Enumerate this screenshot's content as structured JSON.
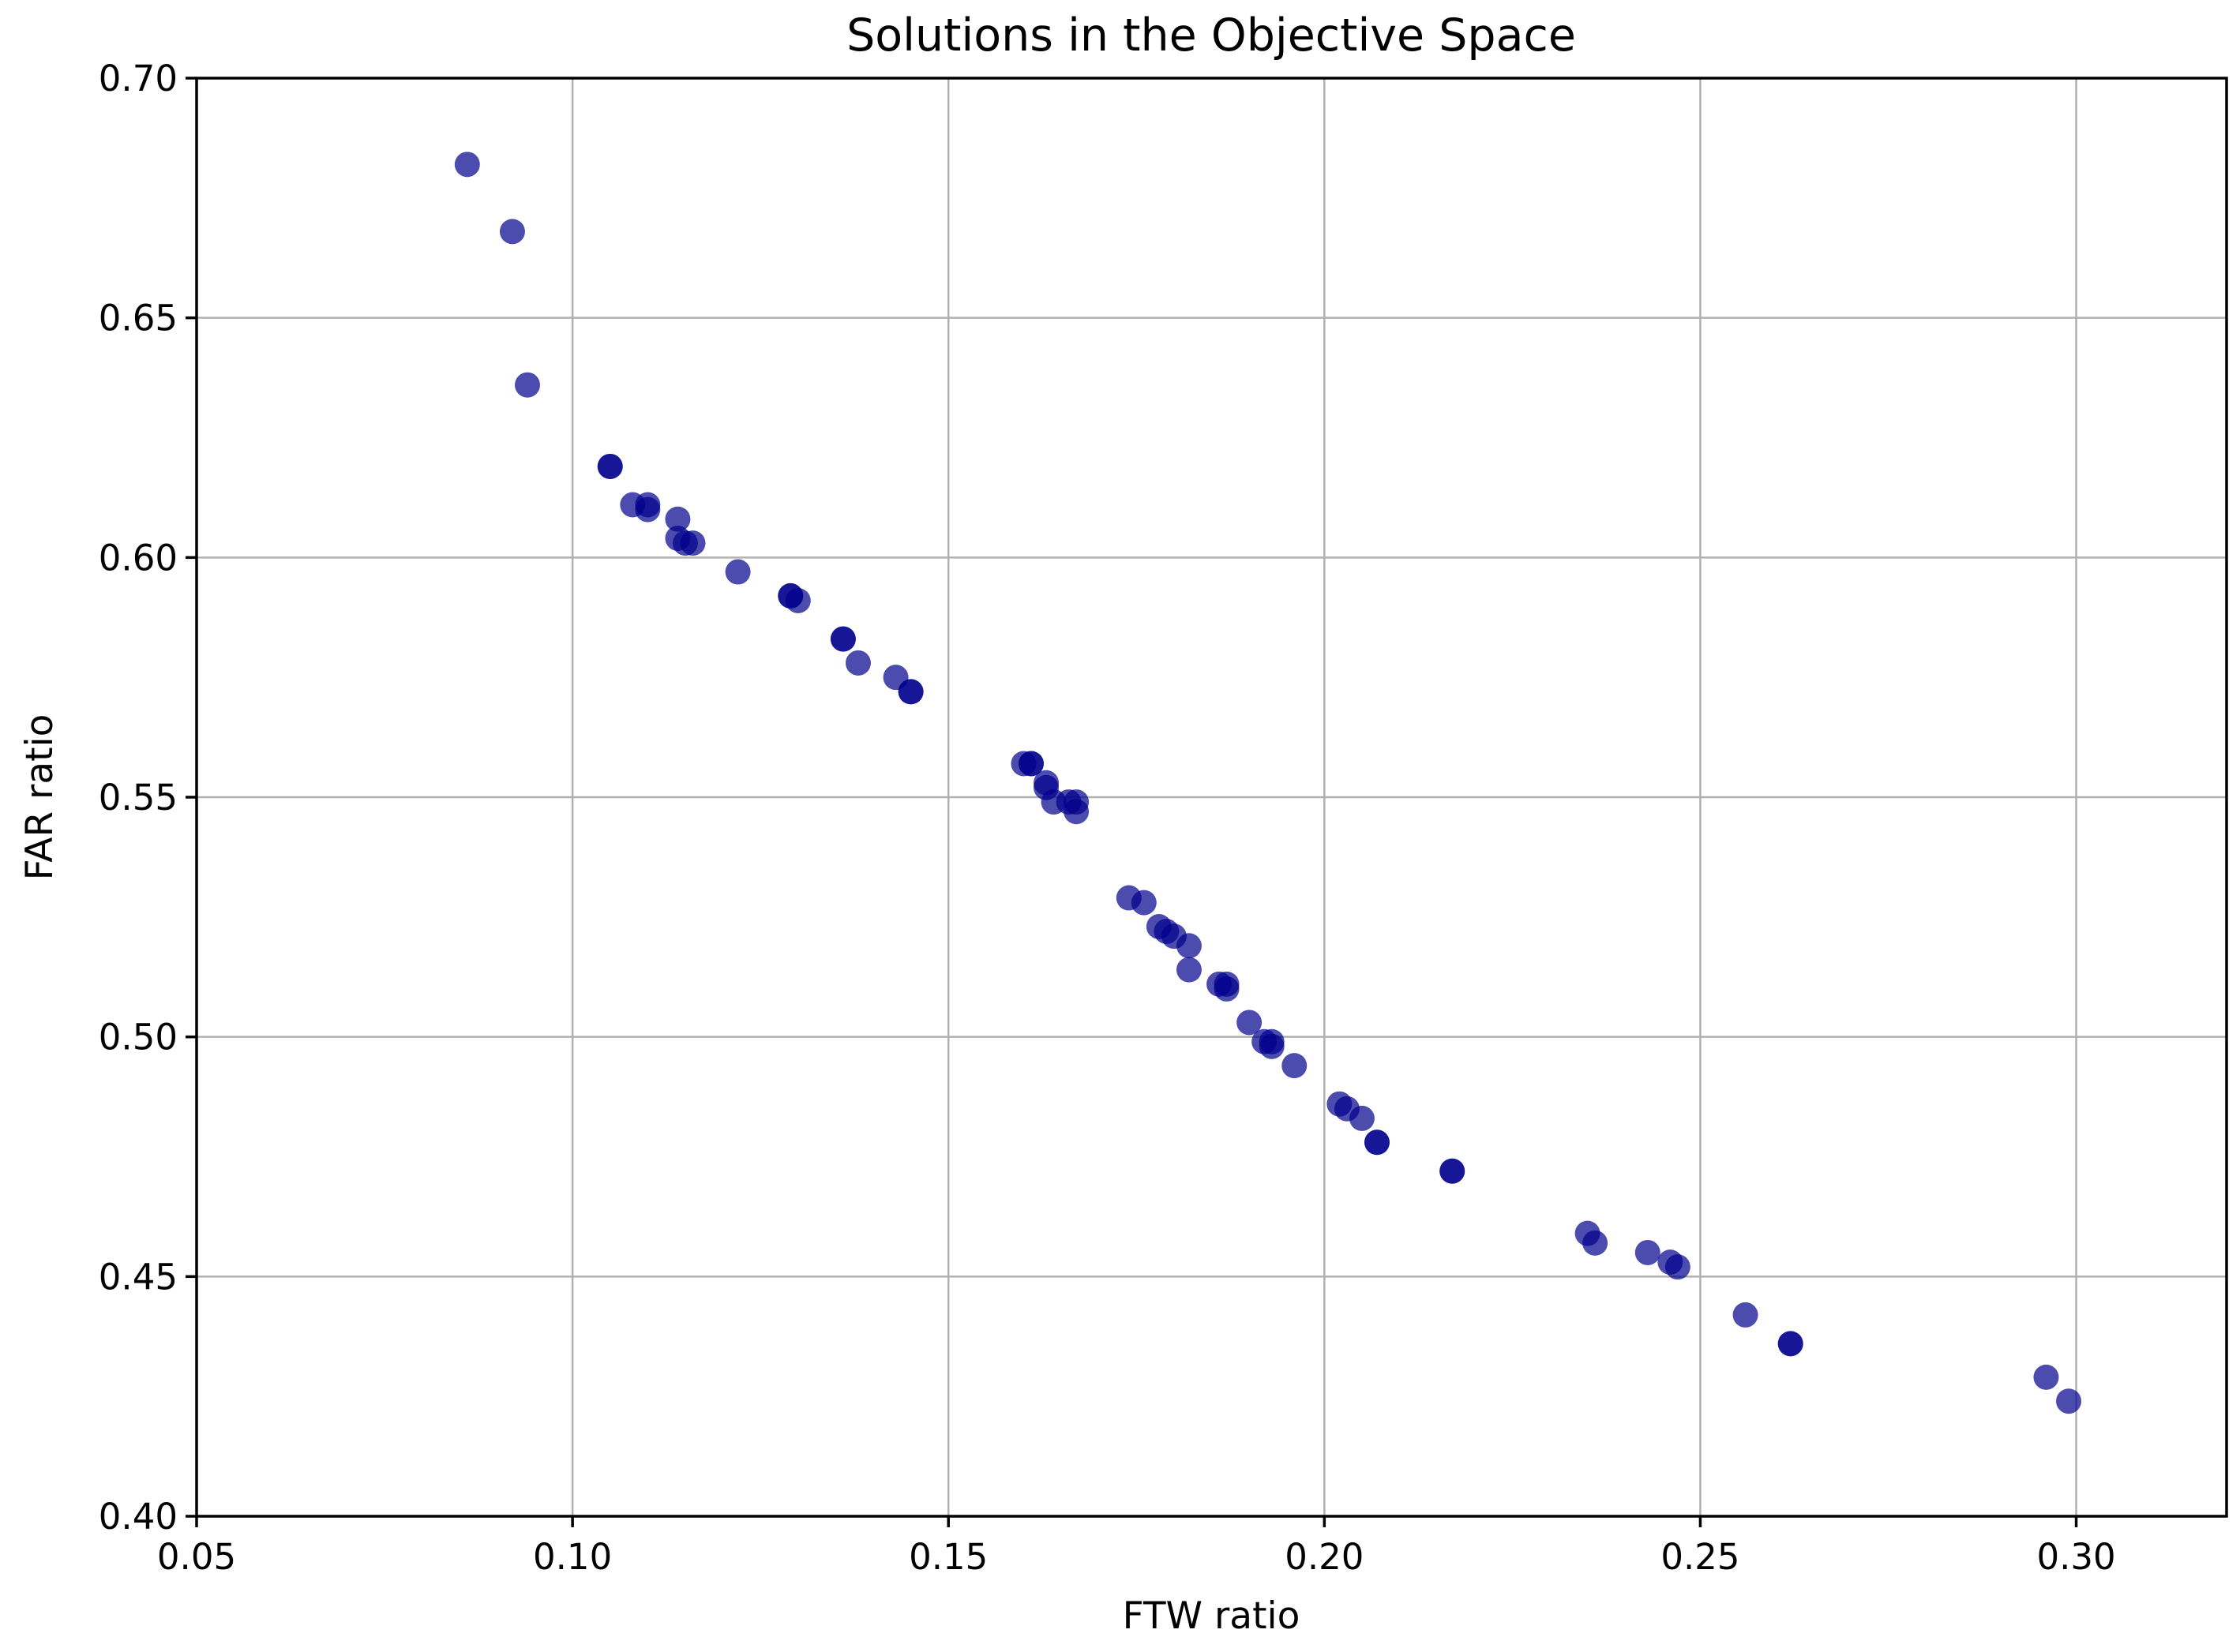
{
  "chart_data": {
    "type": "scatter",
    "title": "Solutions in the Objective Space",
    "xlabel": "FTW ratio",
    "ylabel": "FAR ratio",
    "xlim": [
      0.05,
      0.32
    ],
    "ylim": [
      0.4,
      0.7
    ],
    "xticks": [
      "0.05",
      "0.10",
      "0.15",
      "0.20",
      "0.25",
      "0.30"
    ],
    "yticks": [
      "0.40",
      "0.45",
      "0.50",
      "0.55",
      "0.60",
      "0.65",
      "0.70"
    ],
    "grid": true,
    "marker_color": "#00008b",
    "marker_opacity": 0.7,
    "series": [
      {
        "x": [
          0.086,
          0.092,
          0.094,
          0.105,
          0.105,
          0.108,
          0.11,
          0.11,
          0.114,
          0.114,
          0.115,
          0.116,
          0.122,
          0.129,
          0.129,
          0.13,
          0.136,
          0.136,
          0.138,
          0.143,
          0.145,
          0.145,
          0.16,
          0.161,
          0.161,
          0.163,
          0.163,
          0.164,
          0.166,
          0.167,
          0.167,
          0.174,
          0.176,
          0.178,
          0.179,
          0.18,
          0.182,
          0.182,
          0.186,
          0.187,
          0.187,
          0.19,
          0.192,
          0.193,
          0.193,
          0.196,
          0.202,
          0.203,
          0.205,
          0.207,
          0.207,
          0.217,
          0.217,
          0.235,
          0.236,
          0.243,
          0.246,
          0.247,
          0.256,
          0.262,
          0.262,
          0.296,
          0.299
        ],
        "y": [
          0.682,
          0.668,
          0.636,
          0.619,
          0.619,
          0.611,
          0.611,
          0.61,
          0.608,
          0.604,
          0.603,
          0.603,
          0.597,
          0.592,
          0.592,
          0.591,
          0.583,
          0.583,
          0.578,
          0.575,
          0.572,
          0.572,
          0.557,
          0.557,
          0.557,
          0.553,
          0.552,
          0.549,
          0.549,
          0.549,
          0.547,
          0.529,
          0.528,
          0.523,
          0.522,
          0.521,
          0.519,
          0.514,
          0.511,
          0.511,
          0.51,
          0.503,
          0.499,
          0.499,
          0.498,
          0.494,
          0.486,
          0.485,
          0.483,
          0.478,
          0.478,
          0.472,
          0.472,
          0.459,
          0.457,
          0.455,
          0.453,
          0.452,
          0.442,
          0.436,
          0.436,
          0.429,
          0.424
        ]
      }
    ]
  }
}
